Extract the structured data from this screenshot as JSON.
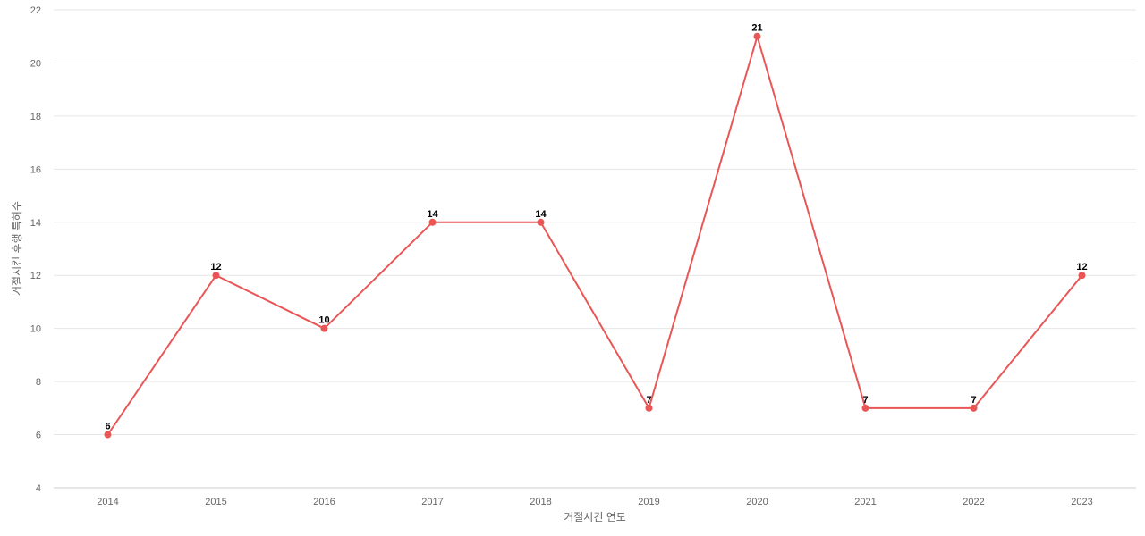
{
  "chart_data": {
    "type": "line",
    "title": "",
    "xlabel": "거절시킨 연도",
    "ylabel": "거절시킨 후행 특허수",
    "categories": [
      "2014",
      "2015",
      "2016",
      "2017",
      "2018",
      "2019",
      "2020",
      "2021",
      "2022",
      "2023"
    ],
    "series": [
      {
        "values": [
          6,
          12,
          10,
          14,
          14,
          7,
          21,
          7,
          7,
          12
        ],
        "color": "#e95656"
      }
    ],
    "ylim": [
      4,
      22
    ],
    "yticks": [
      4,
      6,
      8,
      10,
      12,
      14,
      16,
      18,
      20,
      22
    ],
    "grid": true,
    "data_labels": true
  }
}
